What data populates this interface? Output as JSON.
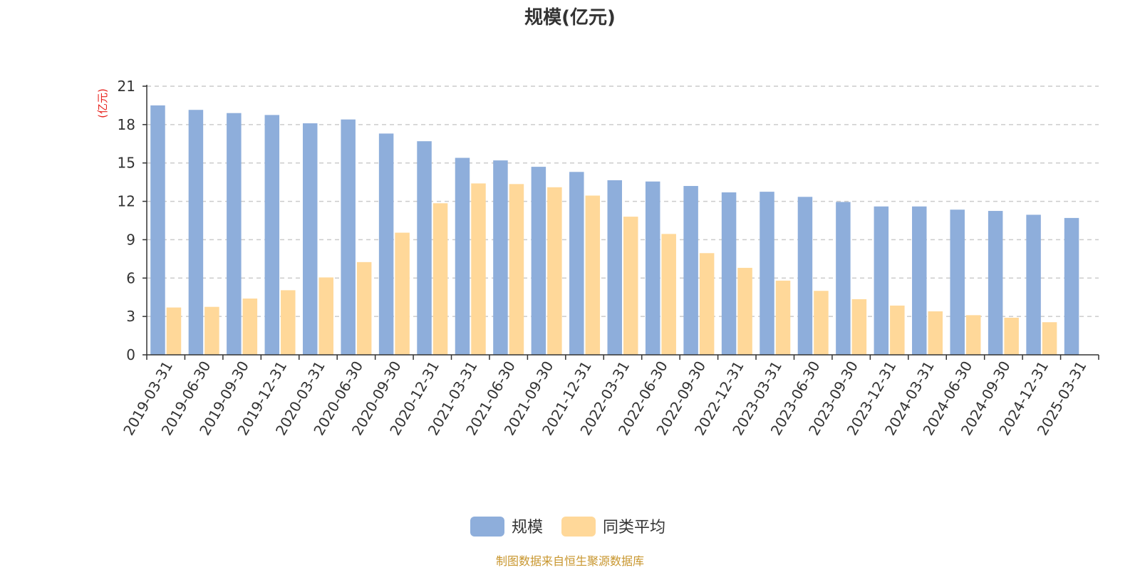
{
  "chart_data": {
    "type": "bar",
    "title": "规模(亿元)",
    "y_unit": "(亿元)",
    "ylim": [
      0,
      21
    ],
    "y_ticks": [
      "0",
      "3",
      "6",
      "9",
      "12",
      "15",
      "18",
      "21"
    ],
    "grid": "horizontal dashed",
    "legend_position": "bottom",
    "categories": [
      "2019-03-31",
      "2019-06-30",
      "2019-09-30",
      "2019-12-31",
      "2020-03-31",
      "2020-06-30",
      "2020-09-30",
      "2020-12-31",
      "2021-03-31",
      "2021-06-30",
      "2021-09-30",
      "2021-12-31",
      "2022-03-31",
      "2022-06-30",
      "2022-09-30",
      "2022-12-31",
      "2023-03-31",
      "2023-06-30",
      "2023-09-30",
      "2023-12-31",
      "2024-03-31",
      "2024-06-30",
      "2024-09-30",
      "2024-12-31",
      "2025-03-31"
    ],
    "series": [
      {
        "name": "规模",
        "color": "#8EAEDB",
        "values": [
          19.5,
          19.15,
          18.9,
          18.75,
          18.1,
          18.4,
          17.3,
          16.7,
          15.4,
          15.2,
          14.7,
          14.3,
          13.65,
          13.55,
          13.2,
          12.7,
          12.75,
          12.35,
          11.95,
          11.6,
          11.6,
          11.35,
          11.25,
          10.95,
          10.7
        ]
      },
      {
        "name": "同类平均",
        "color": "#FFD899",
        "values": [
          3.7,
          3.75,
          4.4,
          5.05,
          6.05,
          7.25,
          9.55,
          11.85,
          13.4,
          13.35,
          13.1,
          12.45,
          10.8,
          9.45,
          7.95,
          6.8,
          5.8,
          5.0,
          4.35,
          3.85,
          3.4,
          3.1,
          2.9,
          2.55,
          null
        ]
      }
    ]
  },
  "source_note": "制图数据来自恒生聚源数据库",
  "colors": {
    "unit_label": "#E8231E",
    "source_note": "#C8962E",
    "grid": "#CCCCCC",
    "axis": "#333333"
  }
}
